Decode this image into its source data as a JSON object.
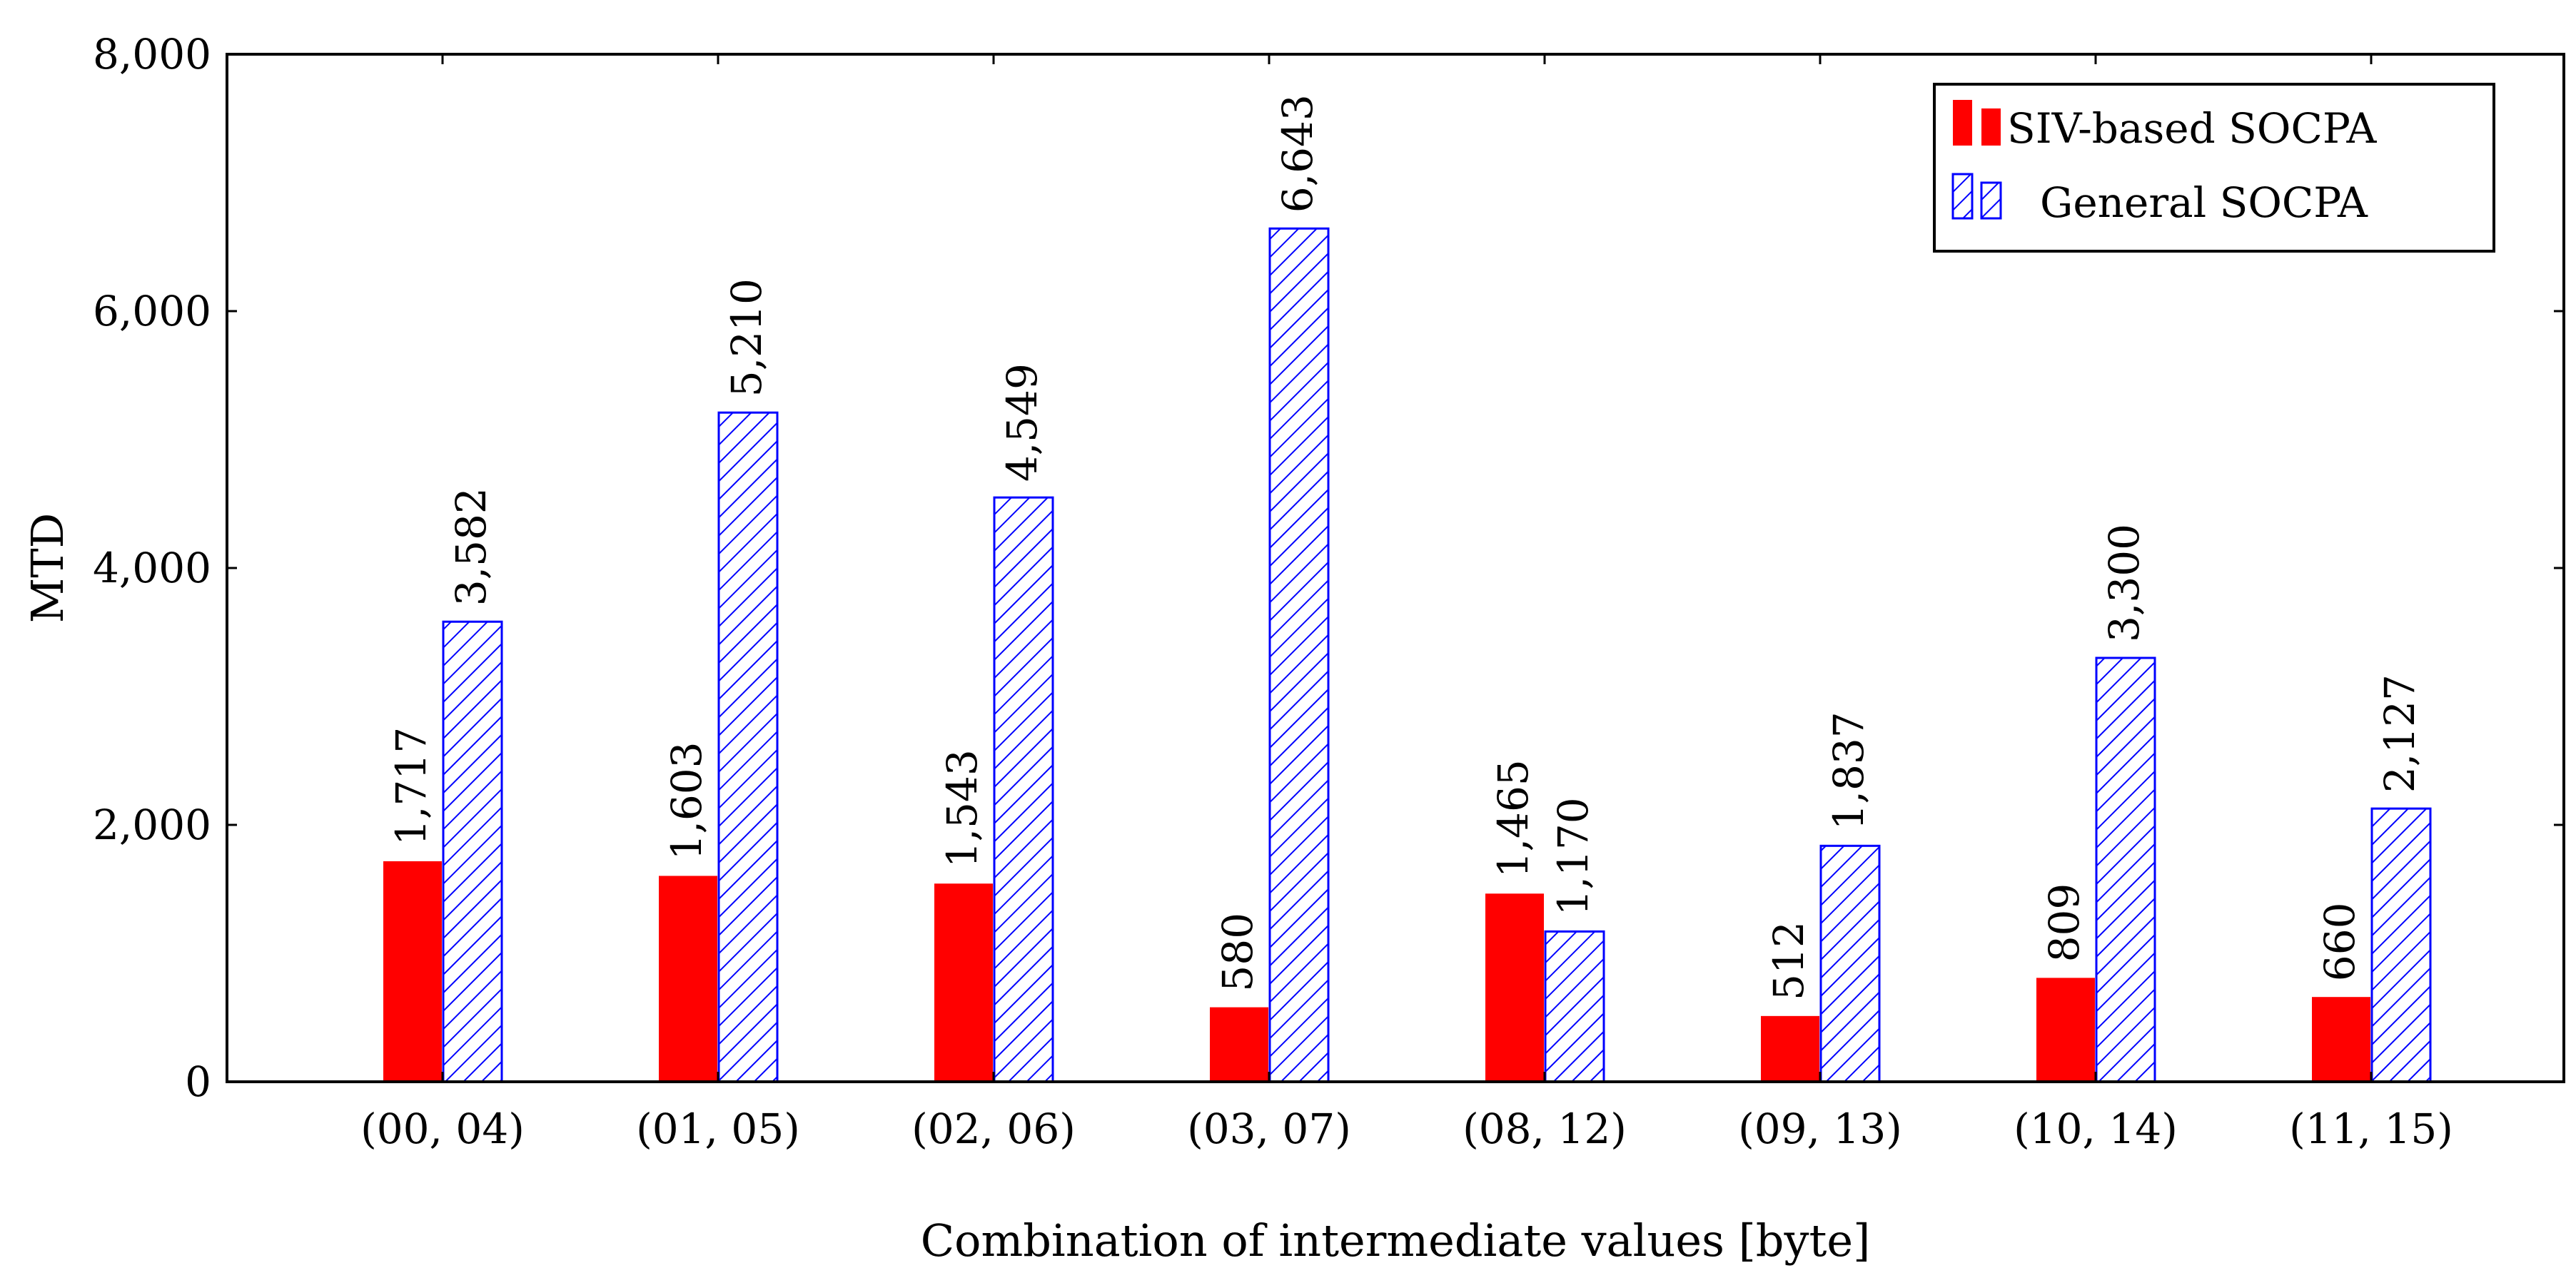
{
  "chart_data": {
    "type": "bar",
    "title": "",
    "xlabel": "Combination of intermediate values [byte]",
    "ylabel": "MTD",
    "ylim": [
      0,
      8000
    ],
    "yticks": [
      0,
      2000,
      4000,
      6000,
      8000
    ],
    "ytick_labels": [
      "0",
      "2,000",
      "4,000",
      "6,000",
      "8,000"
    ],
    "grid": false,
    "legend_position": "top-right",
    "categories": [
      "(00, 04)",
      "(01, 05)",
      "(02, 06)",
      "(03, 07)",
      "(08, 12)",
      "(09, 13)",
      "(10, 14)",
      "(11, 15)"
    ],
    "series": [
      {
        "name": "SIV-based SOCPA",
        "color": "#ff0000",
        "style": "solid",
        "values": [
          1717,
          1603,
          1543,
          580,
          1465,
          512,
          809,
          660
        ],
        "labels": [
          "1,717",
          "1,603",
          "1,543",
          "580",
          "1,465",
          "512",
          "809",
          "660"
        ]
      },
      {
        "name": "General SOCPA",
        "color": "#0000ff",
        "style": "hatched",
        "values": [
          3582,
          5210,
          4549,
          6643,
          1170,
          1837,
          3300,
          2127
        ],
        "labels": [
          "3,582",
          "5,210",
          "4,549",
          "6,643",
          "1,170",
          "1,837",
          "3,300",
          "2,127"
        ]
      }
    ]
  }
}
